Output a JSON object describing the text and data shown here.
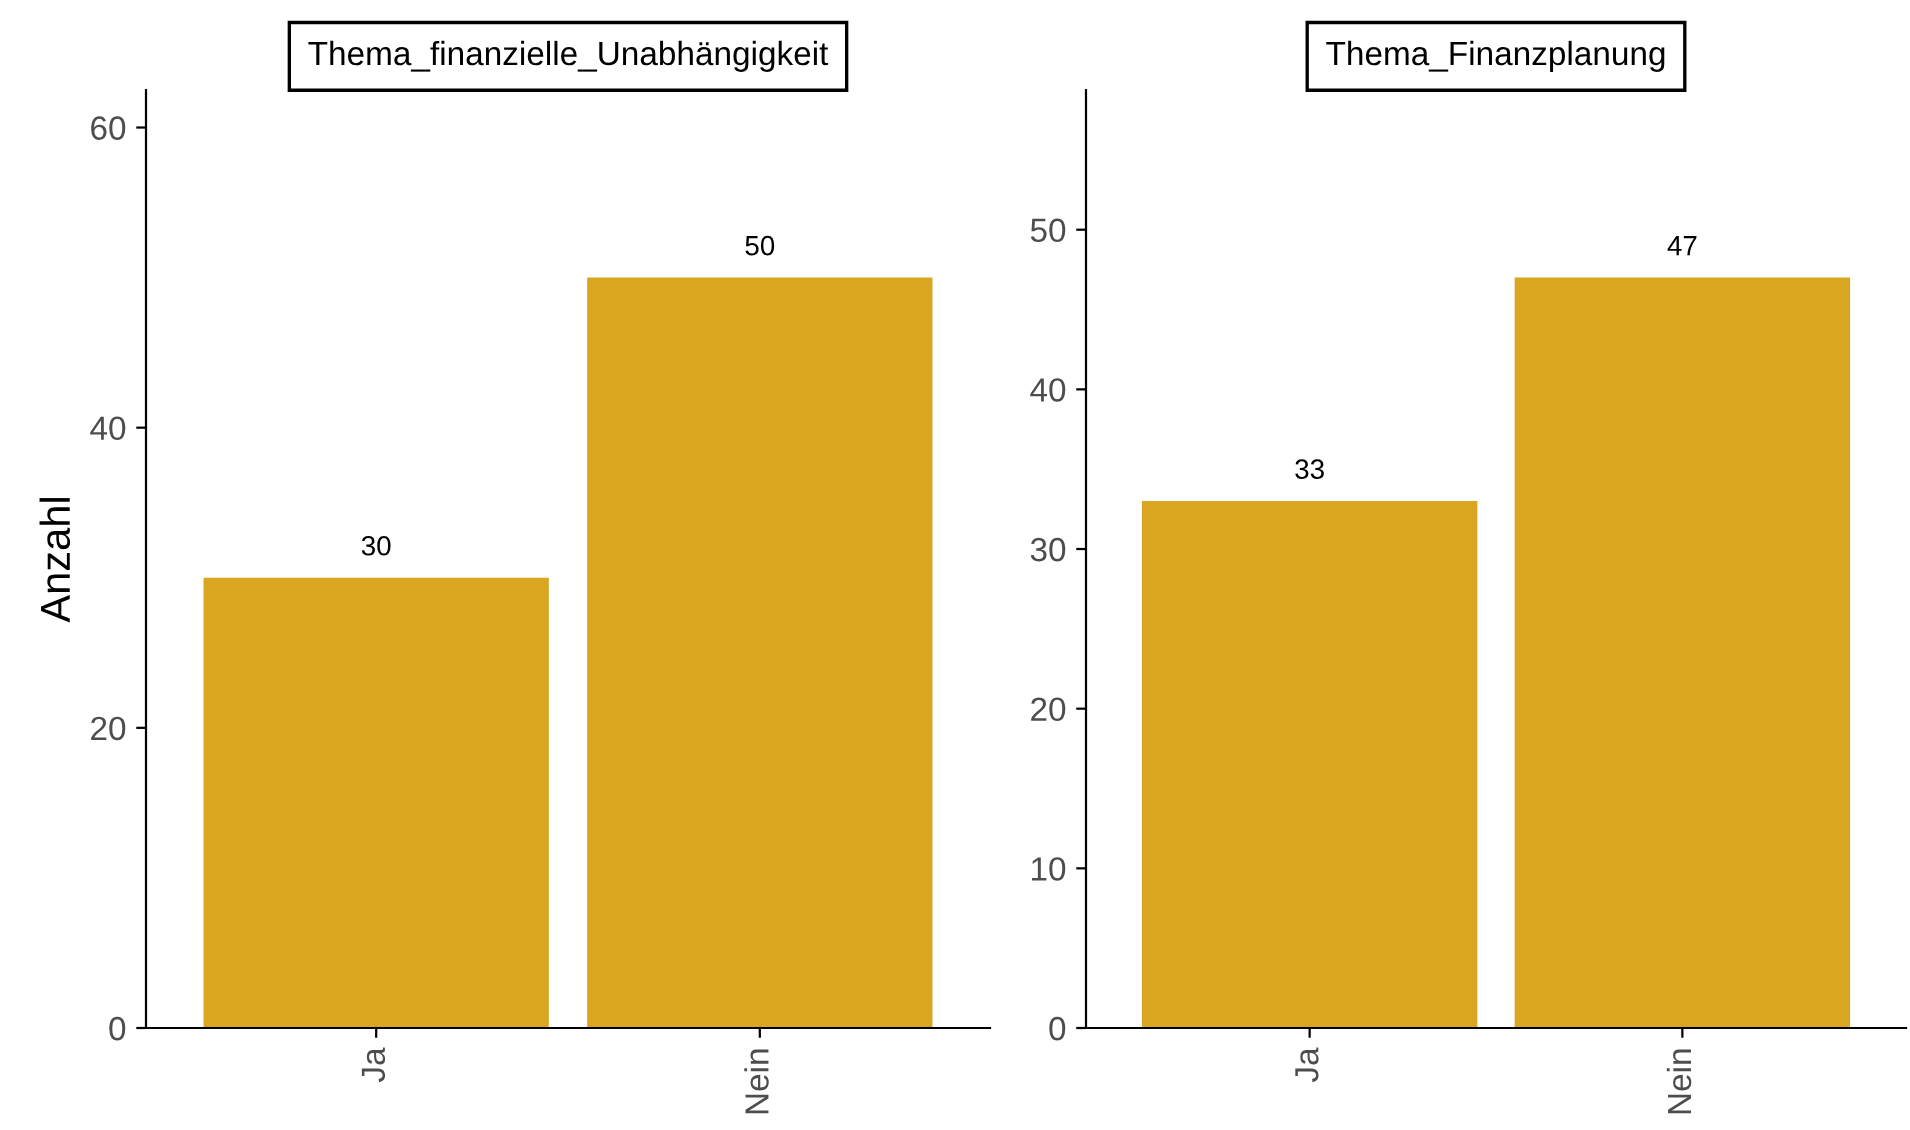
{
  "chart_data": [
    {
      "type": "bar",
      "title": "Thema_finanzielle_Unabhängigkeit",
      "ylabel": "Anzahl",
      "categories": [
        "Ja",
        "Nein"
      ],
      "values": [
        30,
        50
      ],
      "color": "#daa520",
      "ylim": [
        0,
        62.5
      ],
      "yticks": [
        0,
        20,
        40,
        60
      ],
      "data_labels": true,
      "grid": false
    },
    {
      "type": "bar",
      "title": "Thema_Finanzplanung",
      "categories": [
        "Ja",
        "Nein"
      ],
      "values": [
        33,
        47
      ],
      "color": "#daa520",
      "ylim": [
        0,
        58.75
      ],
      "yticks": [
        0,
        10,
        20,
        30,
        40,
        50
      ],
      "data_labels": true,
      "grid": false
    }
  ]
}
